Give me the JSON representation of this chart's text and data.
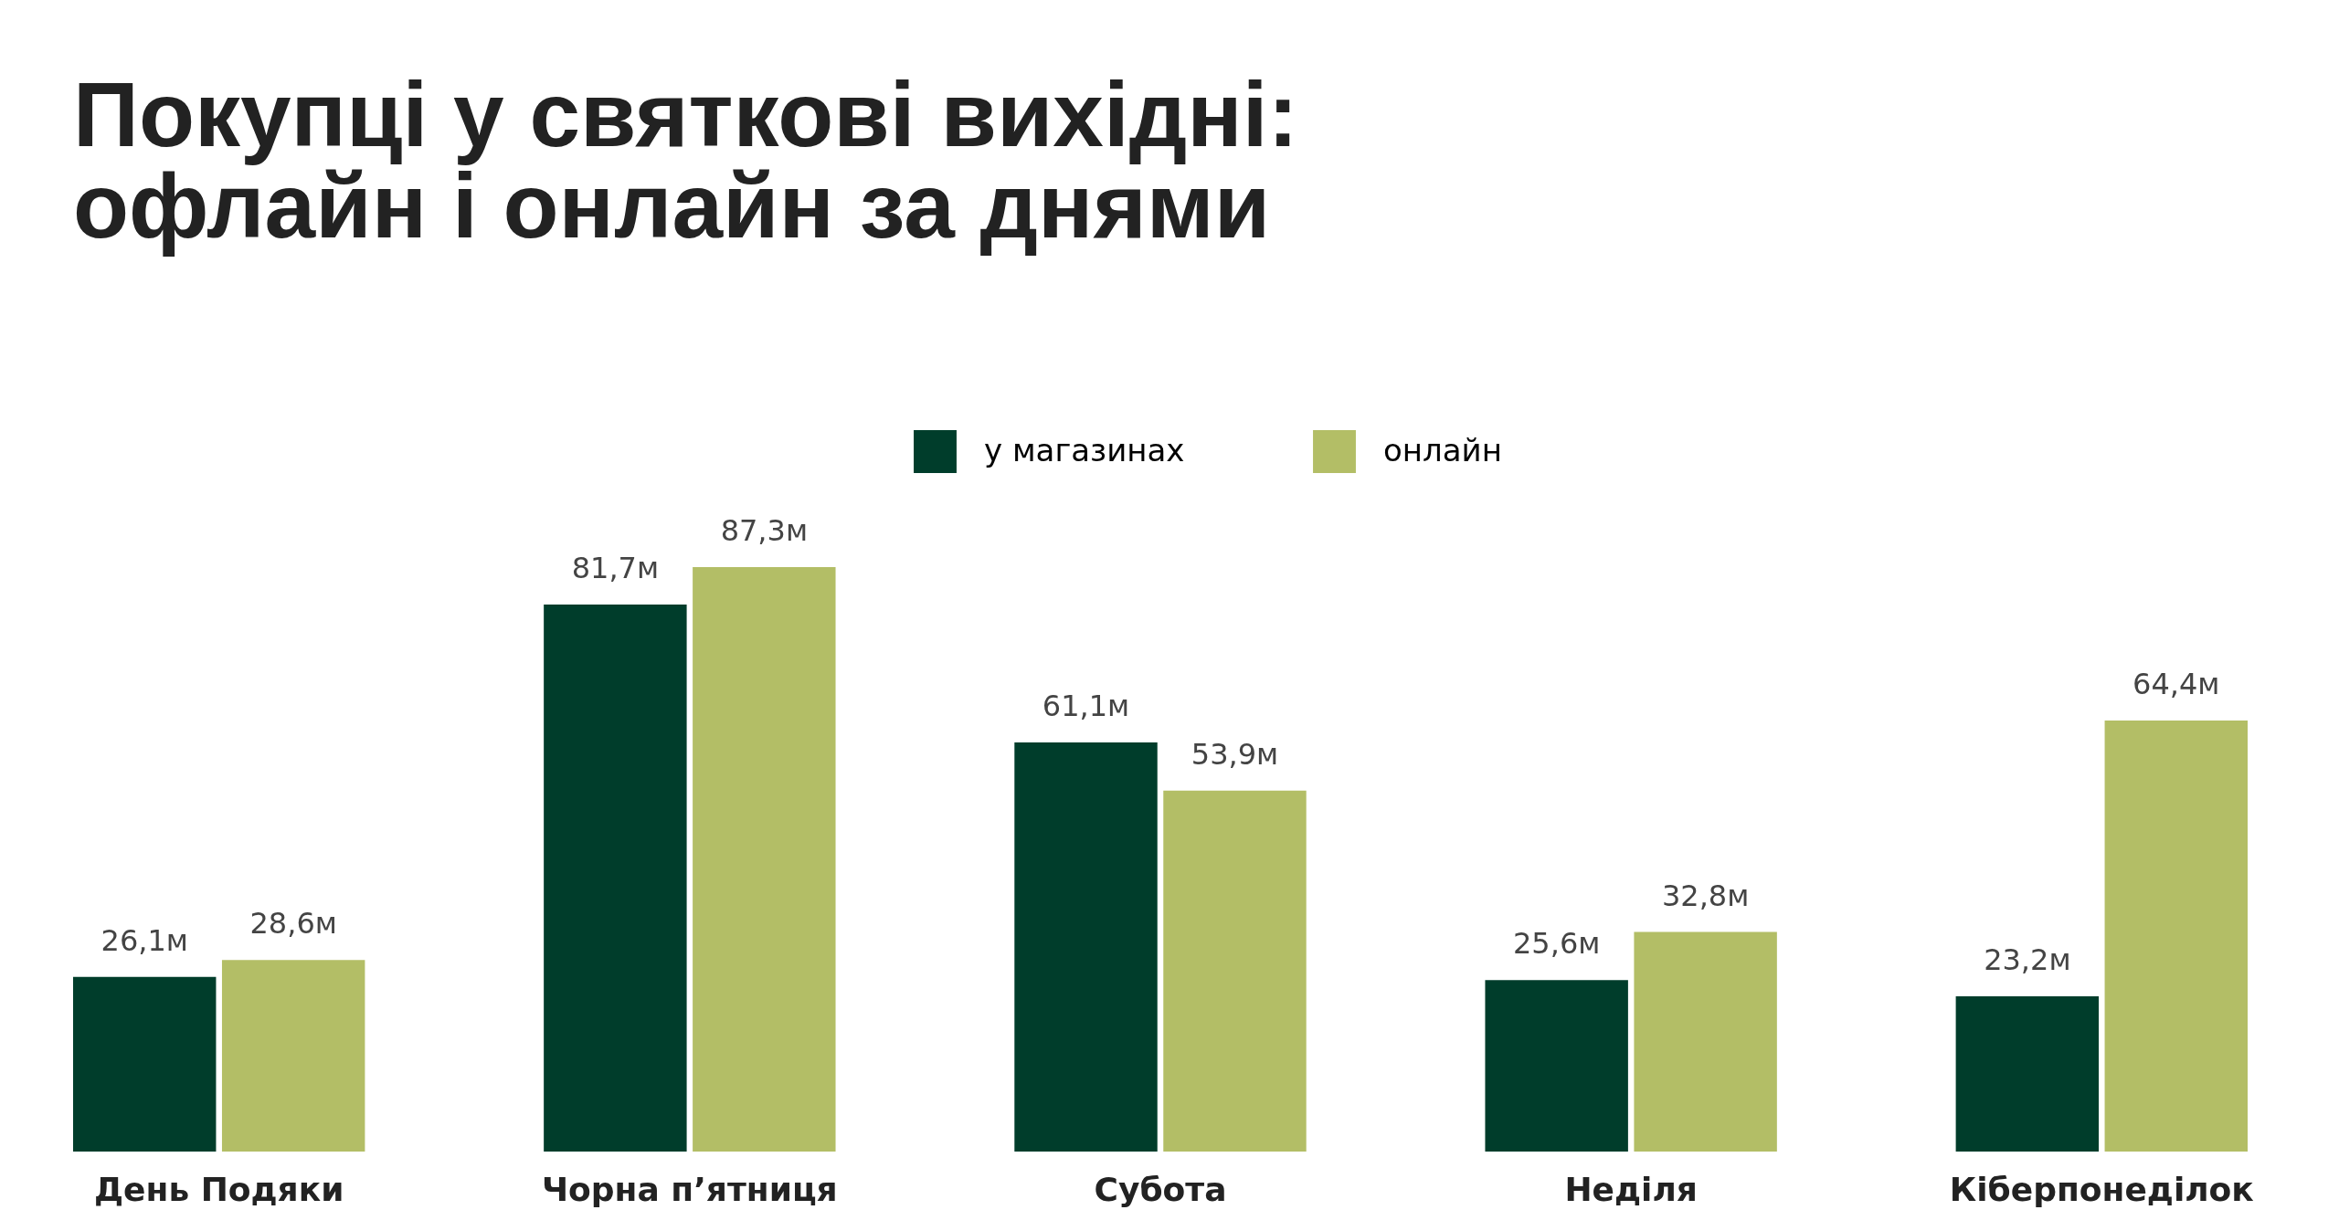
{
  "chart_data": {
    "type": "bar",
    "title": "Покупці у святкові вихідні: офлайн і онлайн за днями",
    "categories": [
      "День Подяки",
      "Чорна п’ятниця",
      "Субота",
      "Неділя",
      "Кіберпонеділок"
    ],
    "series": [
      {
        "name": "у магазинах",
        "color": "#003d2b",
        "values": [
          26.1,
          81.7,
          61.1,
          25.6,
          23.2
        ],
        "value_labels": [
          "26,1м",
          "81,7м",
          "61,1м",
          "25,6м",
          "23,2м"
        ]
      },
      {
        "name": "онлайн",
        "color": "#b3be66",
        "values": [
          28.6,
          87.3,
          53.9,
          32.8,
          64.4
        ],
        "value_labels": [
          "28,6м",
          "87,3м",
          "53,9м",
          "32,8м",
          "64,4м"
        ]
      }
    ],
    "legend": "top"
  }
}
